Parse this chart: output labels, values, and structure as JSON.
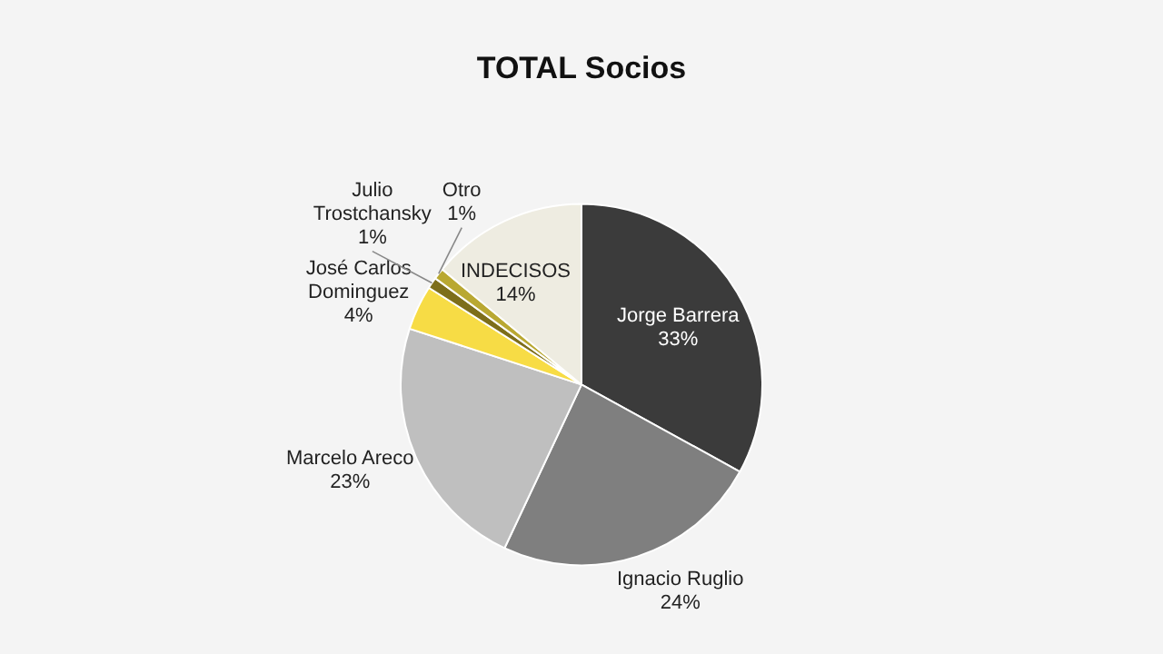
{
  "chart_data": {
    "type": "pie",
    "title": "TOTAL Socios",
    "categories": [
      "Jorge Barrera",
      "Ignacio Ruglio",
      "Marcelo Areco",
      "José Carlos Dominguez",
      "Julio Trostchansky",
      "Otro",
      "INDECISOS"
    ],
    "values": [
      33,
      24,
      23,
      4,
      1,
      1,
      14
    ],
    "value_labels": [
      "33%",
      "24%",
      "23%",
      "4%",
      "1%",
      "1%",
      "14%"
    ],
    "colors": [
      "#3b3b3b",
      "#7f7f7f",
      "#bfbfbf",
      "#f7dc45",
      "#7d6e1a",
      "#b9a832",
      "#eeece1"
    ],
    "legend": false
  }
}
